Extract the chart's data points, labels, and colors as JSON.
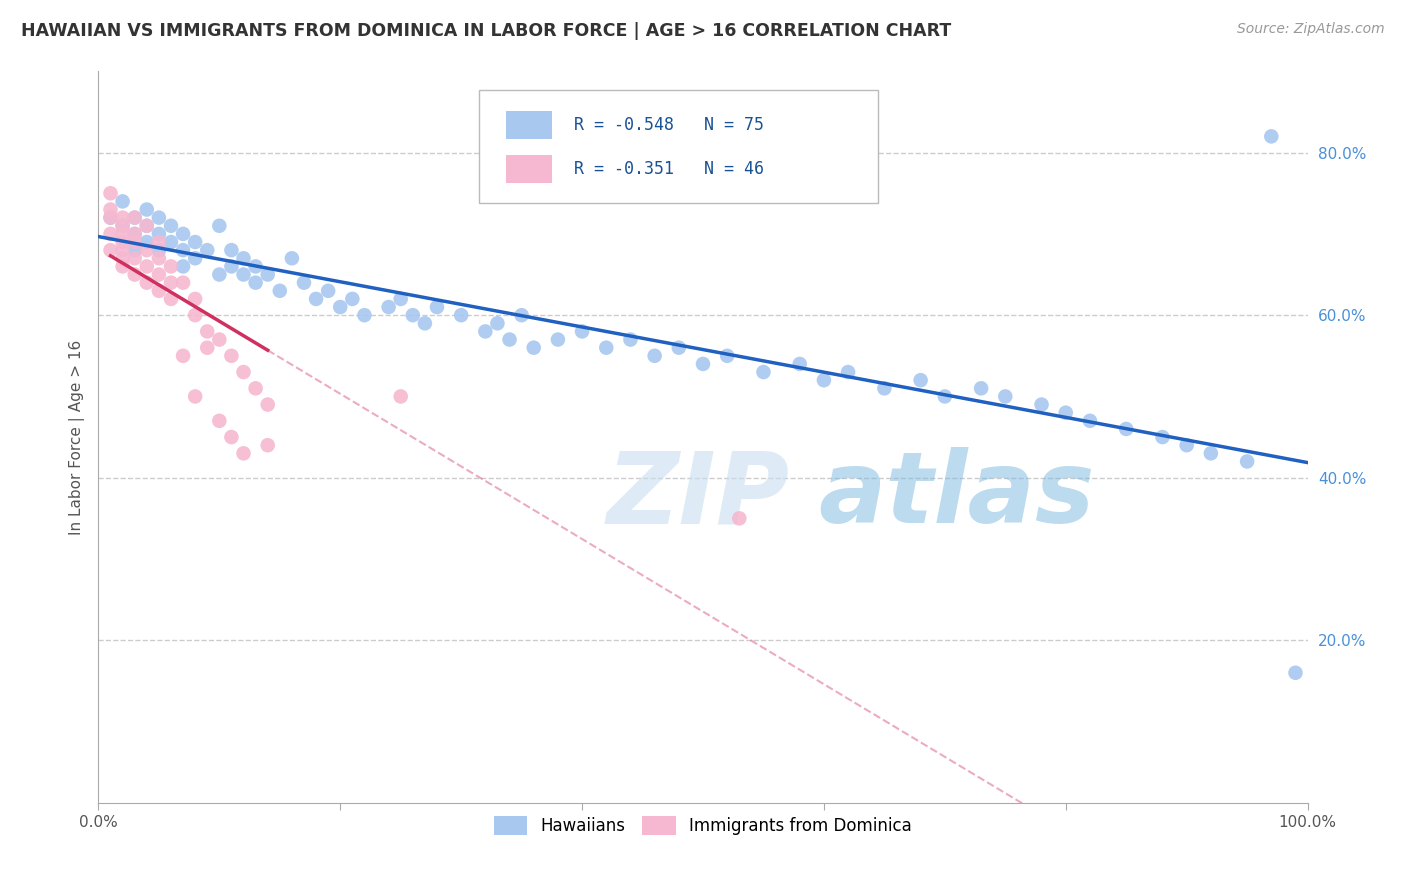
{
  "title": "HAWAIIAN VS IMMIGRANTS FROM DOMINICA IN LABOR FORCE | AGE > 16 CORRELATION CHART",
  "source_text": "Source: ZipAtlas.com",
  "ylabel": "In Labor Force | Age > 16",
  "xlim": [
    0.0,
    1.0
  ],
  "ylim": [
    0.0,
    0.9
  ],
  "x_ticks": [
    0.0,
    0.2,
    0.4,
    0.6,
    0.8,
    1.0
  ],
  "x_tick_labels": [
    "0.0%",
    "",
    "",
    "",
    "",
    "100.0%"
  ],
  "y_ticks": [
    0.2,
    0.4,
    0.6,
    0.8
  ],
  "y_tick_labels": [
    "20.0%",
    "40.0%",
    "60.0%",
    "80.0%"
  ],
  "hawaiian_R": -0.548,
  "hawaiian_N": 75,
  "dominica_R": -0.351,
  "dominica_N": 46,
  "hawaiian_color": "#a8c8f0",
  "dominica_color": "#f5b8d0",
  "hawaiian_line_color": "#2060c0",
  "dominica_line_color": "#e0306080",
  "dominica_line_solid_color": "#d03060",
  "legend_label_1": "Hawaiians",
  "legend_label_2": "Immigrants from Dominica",
  "watermark_zip": "ZIP",
  "watermark_atlas": "atlas",
  "background_color": "#ffffff",
  "grid_color": "#cccccc",
  "hawaiian_x": [
    0.01,
    0.02,
    0.02,
    0.03,
    0.03,
    0.03,
    0.04,
    0.04,
    0.04,
    0.05,
    0.05,
    0.05,
    0.06,
    0.06,
    0.07,
    0.07,
    0.07,
    0.08,
    0.08,
    0.09,
    0.1,
    0.1,
    0.11,
    0.11,
    0.12,
    0.12,
    0.13,
    0.13,
    0.14,
    0.15,
    0.16,
    0.17,
    0.18,
    0.19,
    0.2,
    0.21,
    0.22,
    0.24,
    0.25,
    0.26,
    0.27,
    0.28,
    0.3,
    0.32,
    0.33,
    0.34,
    0.35,
    0.36,
    0.38,
    0.4,
    0.42,
    0.44,
    0.46,
    0.48,
    0.5,
    0.52,
    0.55,
    0.58,
    0.6,
    0.62,
    0.65,
    0.68,
    0.7,
    0.73,
    0.75,
    0.78,
    0.8,
    0.82,
    0.85,
    0.88,
    0.9,
    0.92,
    0.95,
    0.97,
    0.99
  ],
  "hawaiian_y": [
    0.72,
    0.71,
    0.74,
    0.7,
    0.72,
    0.68,
    0.71,
    0.69,
    0.73,
    0.7,
    0.68,
    0.72,
    0.69,
    0.71,
    0.7,
    0.68,
    0.66,
    0.69,
    0.67,
    0.68,
    0.71,
    0.65,
    0.66,
    0.68,
    0.65,
    0.67,
    0.64,
    0.66,
    0.65,
    0.63,
    0.67,
    0.64,
    0.62,
    0.63,
    0.61,
    0.62,
    0.6,
    0.61,
    0.62,
    0.6,
    0.59,
    0.61,
    0.6,
    0.58,
    0.59,
    0.57,
    0.6,
    0.56,
    0.57,
    0.58,
    0.56,
    0.57,
    0.55,
    0.56,
    0.54,
    0.55,
    0.53,
    0.54,
    0.52,
    0.53,
    0.51,
    0.52,
    0.5,
    0.51,
    0.5,
    0.49,
    0.48,
    0.47,
    0.46,
    0.45,
    0.44,
    0.43,
    0.42,
    0.82,
    0.16
  ],
  "dominica_x": [
    0.01,
    0.01,
    0.01,
    0.01,
    0.01,
    0.02,
    0.02,
    0.02,
    0.02,
    0.02,
    0.02,
    0.02,
    0.03,
    0.03,
    0.03,
    0.03,
    0.03,
    0.04,
    0.04,
    0.04,
    0.04,
    0.05,
    0.05,
    0.05,
    0.05,
    0.06,
    0.06,
    0.06,
    0.07,
    0.07,
    0.08,
    0.08,
    0.08,
    0.09,
    0.09,
    0.1,
    0.1,
    0.11,
    0.11,
    0.12,
    0.12,
    0.13,
    0.14,
    0.14,
    0.25,
    0.53
  ],
  "dominica_y": [
    0.72,
    0.7,
    0.68,
    0.75,
    0.73,
    0.71,
    0.69,
    0.67,
    0.72,
    0.7,
    0.68,
    0.66,
    0.69,
    0.67,
    0.65,
    0.72,
    0.7,
    0.68,
    0.66,
    0.64,
    0.71,
    0.69,
    0.67,
    0.65,
    0.63,
    0.66,
    0.64,
    0.62,
    0.64,
    0.55,
    0.62,
    0.6,
    0.5,
    0.58,
    0.56,
    0.57,
    0.47,
    0.55,
    0.45,
    0.53,
    0.43,
    0.51,
    0.49,
    0.44,
    0.5,
    0.35
  ]
}
